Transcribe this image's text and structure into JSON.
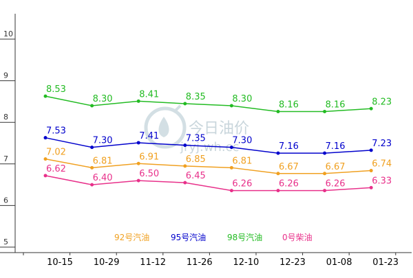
{
  "chart_data": {
    "type": "line",
    "title": "",
    "xlabel": "",
    "ylabel": "",
    "ylim": [
      5,
      10
    ],
    "y_ticks": [
      "5",
      "6",
      "7",
      "8",
      "9",
      "10"
    ],
    "grid": false,
    "categories": [
      "10-15",
      "10-29",
      "11-12",
      "11-26",
      "12-10",
      "12-23",
      "01-08",
      "01-23"
    ],
    "series": [
      {
        "name": "98号汽油",
        "color": "#22bb22",
        "values": [
          8.53,
          8.3,
          8.41,
          8.35,
          8.3,
          8.16,
          8.16,
          8.23
        ],
        "labels": [
          "8.53",
          "8.30",
          "8.41",
          "8.35",
          "8.30",
          "8.16",
          "8.16",
          "8.23"
        ]
      },
      {
        "name": "95号汽油",
        "color": "#0000cc",
        "values": [
          7.53,
          7.3,
          7.41,
          7.35,
          7.3,
          7.16,
          7.16,
          7.23
        ],
        "labels": [
          "7.53",
          "7.30",
          "7.41",
          "7.35",
          "7.30",
          "7.16",
          "7.16",
          "7.23"
        ]
      },
      {
        "name": "92号汽油",
        "color": "#f0a020",
        "values": [
          7.02,
          6.81,
          6.91,
          6.85,
          6.81,
          6.67,
          6.67,
          6.74
        ],
        "labels": [
          "7.02",
          "6.81",
          "6.91",
          "6.85",
          "6.81",
          "6.67",
          "6.67",
          "6.74"
        ]
      },
      {
        "name": "0号柴油",
        "color": "#e8308a",
        "values": [
          6.62,
          6.4,
          6.5,
          6.45,
          6.26,
          6.26,
          6.26,
          6.33
        ],
        "labels": [
          "6.62",
          "6.40",
          "6.50",
          "6.45",
          "6.26",
          "6.26",
          "6.26",
          "6.33"
        ]
      }
    ],
    "legend": [
      "92号汽油",
      "95号汽油",
      "98号汽油",
      "0号柴油"
    ],
    "legend_placement": "bottom"
  },
  "watermark": {
    "brand": "今日油价",
    "domain": "jryj.wh.cc"
  },
  "colors": {
    "axis": "#333333",
    "watermark": "#c9d6dc"
  }
}
